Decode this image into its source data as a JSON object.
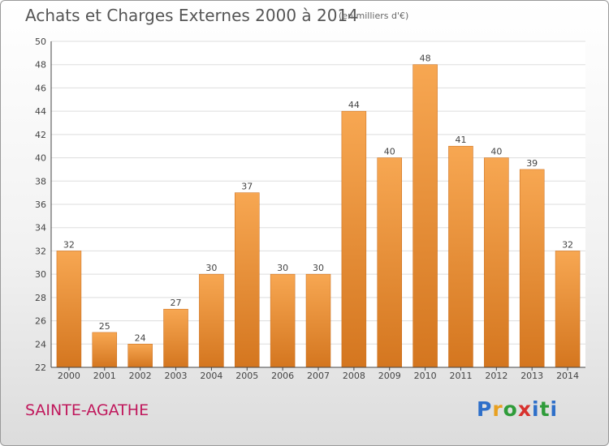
{
  "header": {
    "title": "Achats et Charges Externes 2000 à 2014",
    "unit": "(en milliers d'€)"
  },
  "footer": {
    "town": "SAINTE-AGATHE",
    "logo_letters": [
      "P",
      "r",
      "o",
      "x",
      "i",
      "t",
      "i"
    ]
  },
  "colors": {
    "bar_light": "#f7a752",
    "bar_dark": "#d4761f",
    "grid": "#dddddd",
    "axis": "#444444",
    "town": "#c0185c"
  },
  "chart_data": {
    "type": "bar",
    "title": "Achats et Charges Externes 2000 à 2014",
    "xlabel": "",
    "ylabel": "",
    "categories": [
      "2000",
      "2001",
      "2002",
      "2003",
      "2004",
      "2005",
      "2006",
      "2007",
      "2008",
      "2009",
      "2010",
      "2011",
      "2012",
      "2013",
      "2014"
    ],
    "values": [
      32,
      25,
      24,
      27,
      30,
      37,
      30,
      30,
      44,
      40,
      48,
      41,
      40,
      39,
      32
    ],
    "ylim": [
      22,
      50
    ],
    "yticks": [
      22,
      24,
      26,
      28,
      30,
      32,
      34,
      36,
      38,
      40,
      42,
      44,
      46,
      48,
      50
    ],
    "grid": true,
    "data_labels": true,
    "legend": "none"
  }
}
